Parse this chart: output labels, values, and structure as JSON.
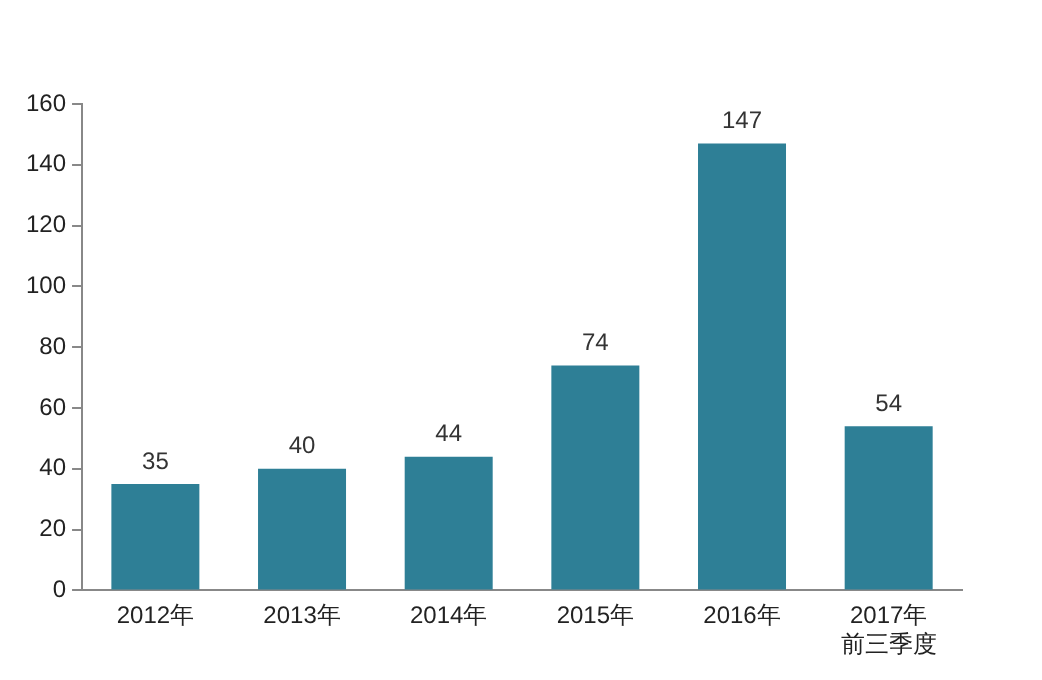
{
  "chart_data": {
    "type": "bar",
    "categories": [
      "2012年",
      "2013年",
      "2014年",
      "2015年",
      "2016年",
      "2017年前三季度"
    ],
    "values": [
      35,
      40,
      44,
      74,
      147,
      54
    ],
    "color": "#2e7f96",
    "ylim": [
      0,
      160
    ],
    "yticks": [
      0,
      20,
      40,
      60,
      80,
      100,
      120,
      140,
      160
    ],
    "grid": false,
    "legend": false,
    "data_labels": true
  }
}
